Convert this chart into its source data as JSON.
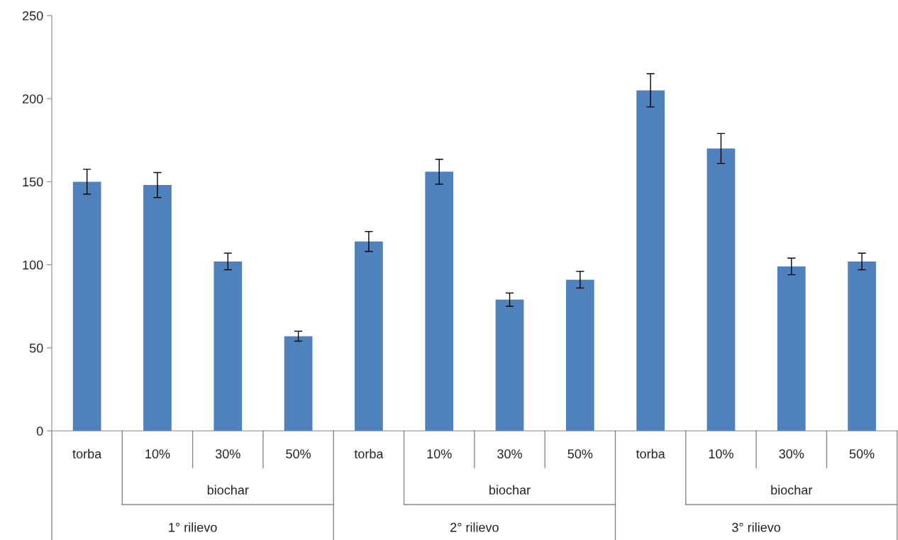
{
  "chart_data": {
    "type": "bar",
    "categories": [
      "torba",
      "10%",
      "30%",
      "50%",
      "torba",
      "10%",
      "30%",
      "50%",
      "torba",
      "10%",
      "30%",
      "50%"
    ],
    "values": [
      150,
      148,
      102,
      57,
      114,
      156,
      79,
      91,
      205,
      170,
      99,
      102
    ],
    "errors": [
      7.5,
      7.5,
      5,
      3,
      6,
      7.5,
      4,
      5,
      10,
      9,
      5,
      5
    ],
    "color": "#4f81bd",
    "ylim": [
      0,
      250
    ],
    "yticks": [
      0,
      50,
      100,
      150,
      200,
      250
    ],
    "annotations": [
      "biochar",
      "biochar",
      "biochar",
      "1° rilievo",
      "2° rilievo",
      "3° rilievo"
    ]
  }
}
